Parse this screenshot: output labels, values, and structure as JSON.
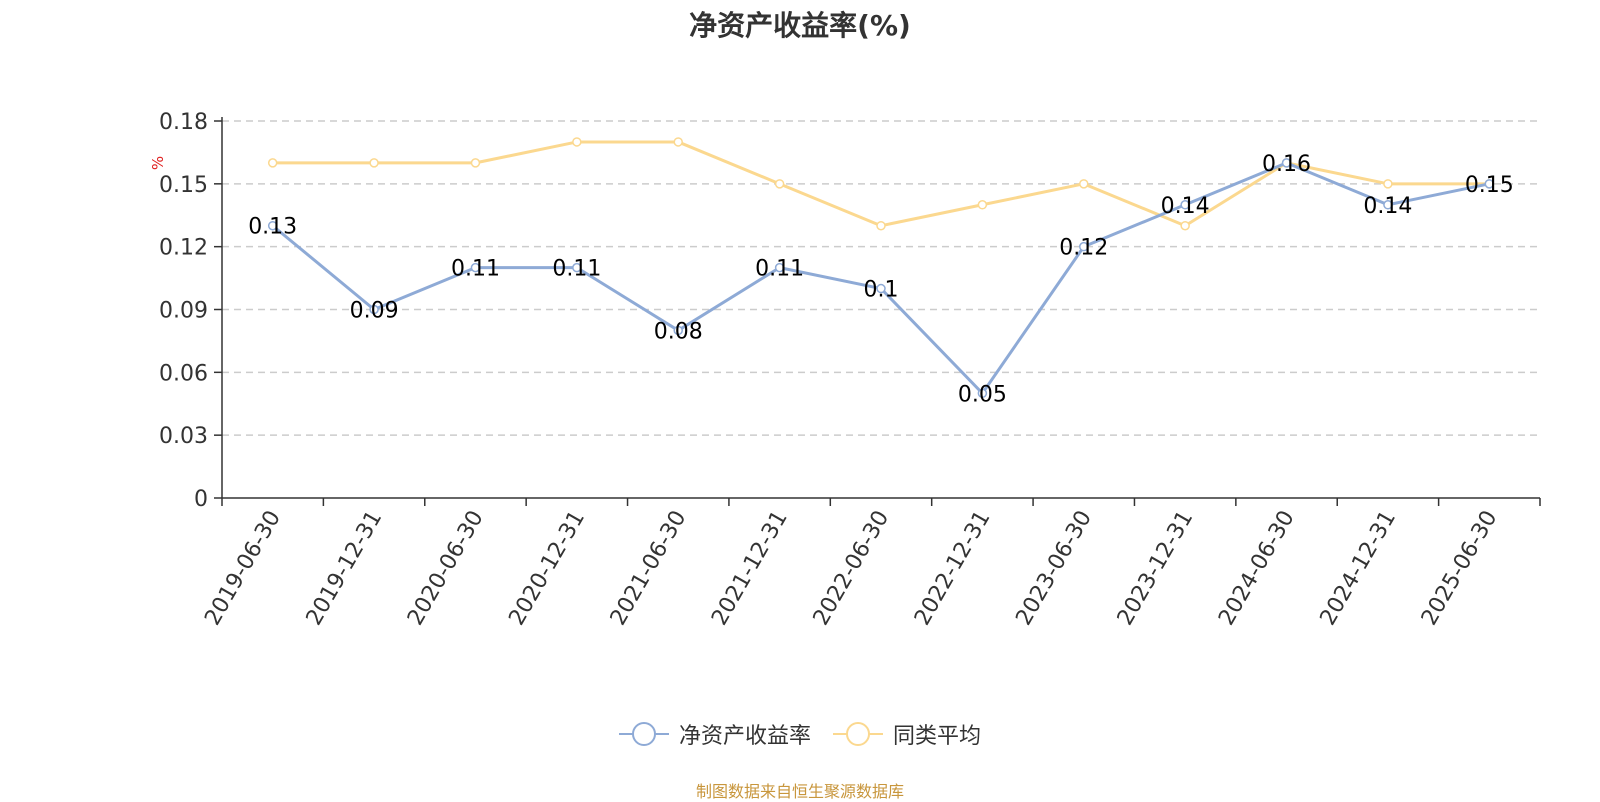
{
  "title": "净资产收益率(%)",
  "source_note": "制图数据来自恒生聚源数据库",
  "colors": {
    "series_roe": "#8eaad6",
    "series_avg": "#fbd88f",
    "grid": "#cccccc",
    "axis": "#333333",
    "unit": "#e02020",
    "source": "#c8963c"
  },
  "chart_data": {
    "type": "line",
    "title": "净资产收益率(%)",
    "ylabel": "%",
    "xlabel": "",
    "categories": [
      "2019-06-30",
      "2019-12-31",
      "2020-06-30",
      "2020-12-31",
      "2021-06-30",
      "2021-12-31",
      "2022-06-30",
      "2022-12-31",
      "2023-06-30",
      "2023-12-31",
      "2024-06-30",
      "2024-12-31",
      "2025-06-30"
    ],
    "ylim": [
      0,
      0.18
    ],
    "yticks": [
      0,
      0.03,
      0.06,
      0.09,
      0.12,
      0.15,
      0.18
    ],
    "ytick_labels": [
      "0",
      "0.03",
      "0.06",
      "0.09",
      "0.12",
      "0.15",
      "0.18"
    ],
    "grid": true,
    "legend_position": "bottom-center",
    "series": [
      {
        "name": "净资产收益率",
        "values": [
          0.13,
          0.09,
          0.11,
          0.11,
          0.08,
          0.11,
          0.1,
          0.05,
          0.12,
          0.14,
          0.16,
          0.14,
          0.15
        ],
        "data_labels": [
          "0.13",
          "0.09",
          "0.11",
          "0.11",
          "0.08",
          "0.11",
          "0.1",
          "0.05",
          "0.12",
          "0.14",
          "0.16",
          "0.14",
          "0.15"
        ]
      },
      {
        "name": "同类平均",
        "values": [
          0.16,
          0.16,
          0.16,
          0.17,
          0.17,
          0.15,
          0.13,
          0.14,
          0.15,
          0.13,
          0.16,
          0.15,
          0.15
        ]
      }
    ]
  }
}
